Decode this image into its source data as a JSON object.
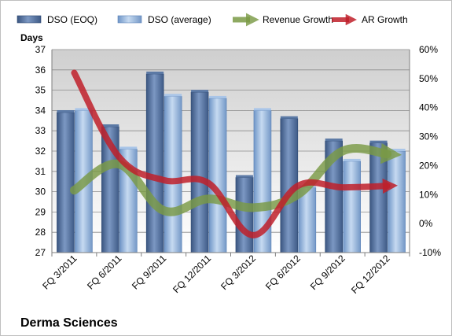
{
  "chart_data": {
    "type": "bar",
    "title": "",
    "company": "Derma Sciences",
    "categories": [
      "FQ 3/2011",
      "FQ 6/2011",
      "FQ 9/2011",
      "FQ 12/2011",
      "FQ 3/2012",
      "FQ 6/2012",
      "FQ 9/2012",
      "FQ 12/2012"
    ],
    "ylabel": "Days",
    "ylim": [
      27,
      37
    ],
    "yticks": [
      "27",
      "28",
      "29",
      "30",
      "31",
      "32",
      "33",
      "34",
      "35",
      "36",
      "37"
    ],
    "y2lim": [
      -10,
      60
    ],
    "y2ticks": [
      "-10%",
      "0%",
      "10%",
      "20%",
      "30%",
      "40%",
      "50%",
      "60%"
    ],
    "series": [
      {
        "name": "DSO (EOQ)",
        "kind": "bar",
        "axis": "left",
        "color": "#4e6f9e",
        "values": [
          33.9,
          33.2,
          35.8,
          34.9,
          30.7,
          33.6,
          32.5,
          32.4
        ]
      },
      {
        "name": "DSO (average)",
        "kind": "bar",
        "axis": "left",
        "color": "#8fb2dc",
        "values": [
          34.0,
          32.1,
          34.7,
          34.6,
          34.0,
          30.2,
          31.5,
          32.0
        ]
      },
      {
        "name": "Revenue Growth",
        "kind": "arrow-line",
        "axis": "right",
        "color": "#7a9a45",
        "values": [
          11.5,
          20.5,
          4.5,
          8.5,
          5.5,
          10.0,
          25.0,
          24.0
        ]
      },
      {
        "name": "AR Growth",
        "kind": "arrow-line",
        "axis": "right",
        "color": "#c0202a",
        "values": [
          52.0,
          23.0,
          15.0,
          14.0,
          -4.0,
          13.0,
          12.5,
          13.0
        ]
      }
    ],
    "grid": true,
    "legend_position": "top"
  }
}
